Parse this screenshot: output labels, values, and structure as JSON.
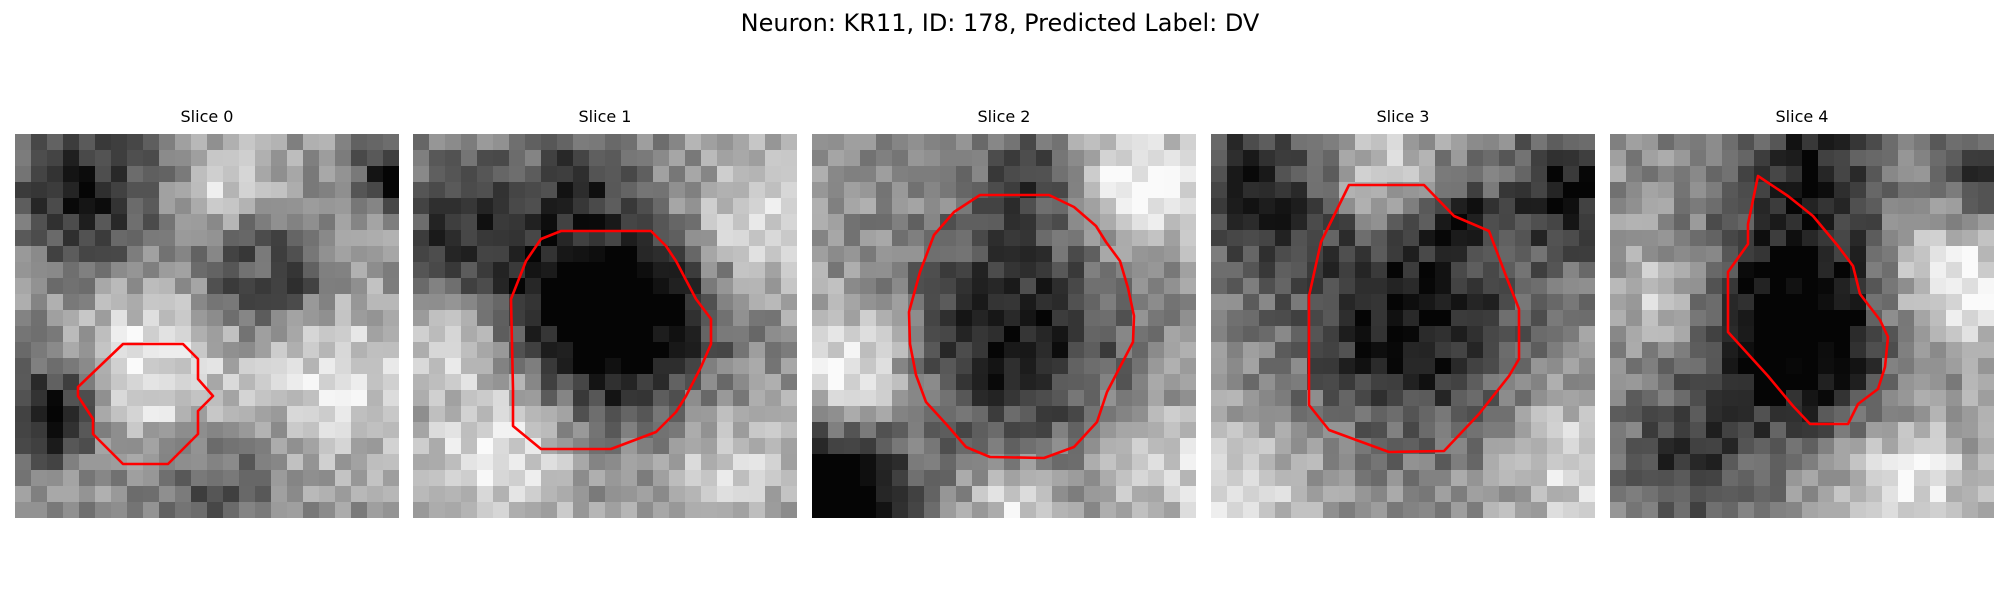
{
  "figure": {
    "title": "Neuron: KR11, ID: 178, Predicted Label: DV"
  },
  "panels": [
    {
      "title": "Slice 0",
      "contour_color": "#ff0000"
    },
    {
      "title": "Slice 1",
      "contour_color": "#ff0000"
    },
    {
      "title": "Slice 2",
      "contour_color": "#ff0000"
    },
    {
      "title": "Slice 3",
      "contour_color": "#ff0000"
    },
    {
      "title": "Slice 4",
      "contour_color": "#ff0000"
    }
  ]
}
